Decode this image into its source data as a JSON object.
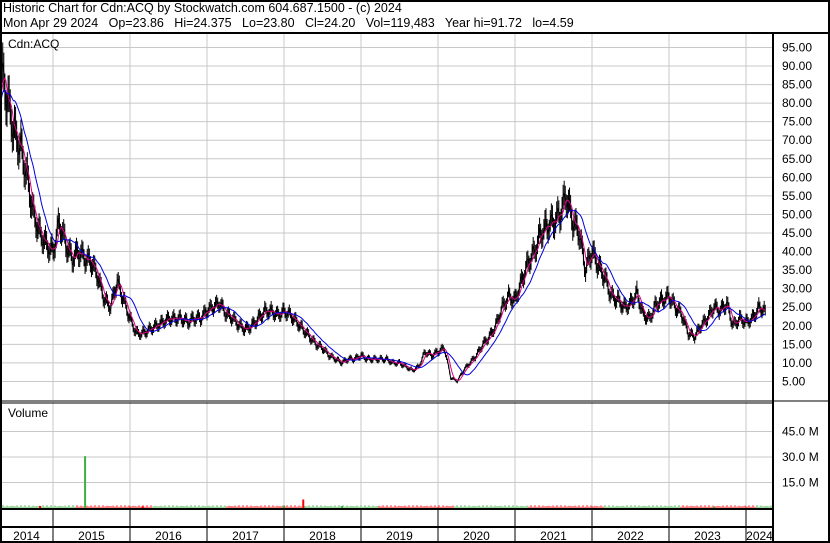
{
  "header": {
    "title": "Historic Chart for Cdn:ACQ by Stockwatch.com 604.687.1500 - (c) 2024",
    "quote": "Mon Apr 29 2024   Op=23.86   Hi=24.375   Lo=23.80   Cl=24.20   Vol=119,483   Year hi=91.72   lo=4.59"
  },
  "chart_data": [
    {
      "type": "line",
      "title": "Cdn:ACQ",
      "y_ticks": [
        "95.00",
        "90.00",
        "85.00",
        "80.00",
        "75.00",
        "70.00",
        "65.00",
        "60.00",
        "55.00",
        "50.00",
        "45.00",
        "40.00",
        "35.00",
        "30.00",
        "25.00",
        "20.00",
        "15.00",
        "10.00",
        "5.00"
      ],
      "ylim": [
        0,
        100
      ],
      "x_ticks": [
        "2014",
        "2015",
        "2016",
        "2017",
        "2018",
        "2019",
        "2020",
        "2021",
        "2022",
        "2023",
        "2024"
      ],
      "grid": true,
      "colors": {
        "price": "#000000",
        "ma_short": "#e0008a",
        "ma_long": "#0000e0"
      },
      "start_month": "2014-04",
      "monthly_close": [
        75,
        88,
        80,
        72,
        68,
        60,
        50,
        45,
        42,
        40,
        48,
        42,
        38,
        40,
        38,
        37,
        33,
        27,
        25,
        32,
        27,
        22,
        18,
        18,
        19,
        20,
        21,
        22,
        22,
        22,
        21,
        22,
        22,
        24,
        25,
        26,
        23,
        22,
        20,
        19,
        20,
        22,
        24,
        24,
        23,
        24,
        23,
        21,
        19,
        17,
        15,
        14,
        12,
        11,
        10,
        11,
        11,
        12,
        11,
        11,
        11,
        11,
        10,
        10,
        9,
        8,
        9,
        13,
        12,
        13,
        14,
        6,
        5,
        8,
        10,
        12,
        15,
        17,
        20,
        25,
        28,
        27,
        32,
        37,
        40,
        45,
        47,
        48,
        50,
        55,
        48,
        45,
        35,
        40,
        36,
        33,
        28,
        27,
        25,
        26,
        29,
        23,
        22,
        26,
        27,
        28,
        25,
        23,
        18,
        17,
        20,
        22,
        25,
        24,
        26,
        20,
        22,
        21,
        22,
        25,
        24.2
      ]
    },
    {
      "type": "bar",
      "title": "Volume",
      "y_ticks": [
        "45.0 M",
        "30.0 M",
        "15.0 M"
      ],
      "ylim": [
        0,
        60
      ],
      "colors": {
        "up": "#3cb043",
        "down": "#ff0000"
      },
      "notable_bars": [
        {
          "month": "2014-11",
          "value_m": 1.2,
          "dir": "down"
        },
        {
          "month": "2015-06",
          "value_m": 30.5,
          "dir": "up"
        },
        {
          "month": "2016-03",
          "value_m": 1.0,
          "dir": "down"
        },
        {
          "month": "2018-01",
          "value_m": 1.5,
          "dir": "up"
        },
        {
          "month": "2018-04",
          "value_m": 5.0,
          "dir": "down"
        },
        {
          "month": "2018-10",
          "value_m": 1.2,
          "dir": "up"
        },
        {
          "month": "2023-08",
          "value_m": 0.8,
          "dir": "up"
        }
      ]
    }
  ]
}
